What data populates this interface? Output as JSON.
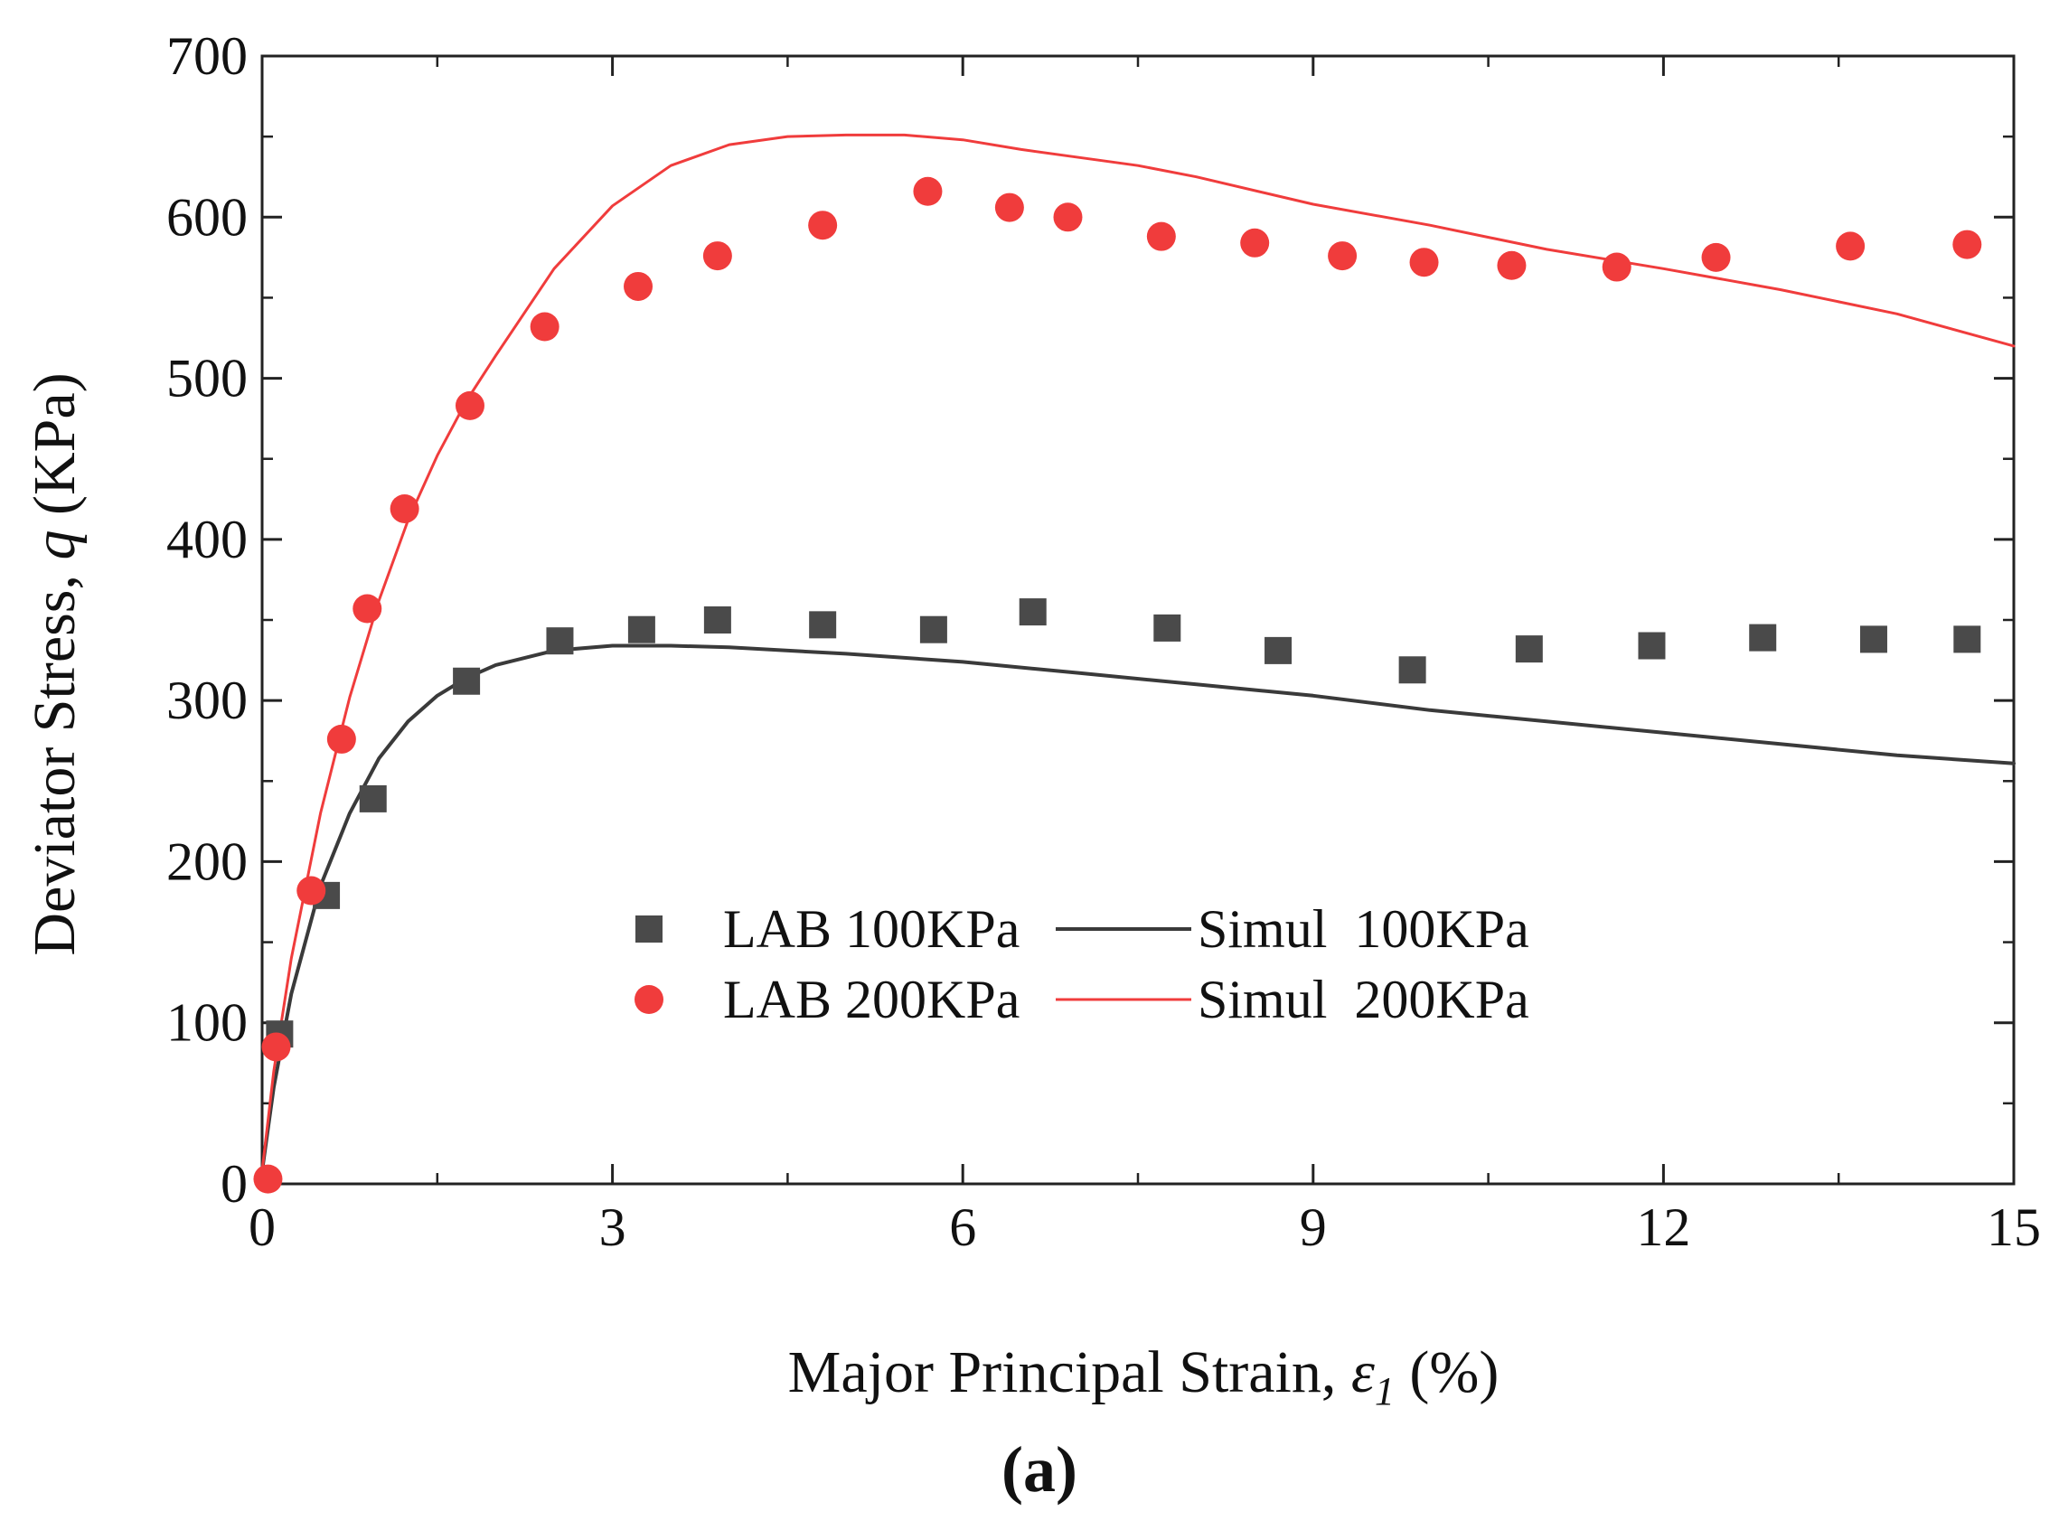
{
  "chart_data": {
    "type": "line",
    "title": "",
    "xlabel": "Major Principal Strain, ",
    "xlabel_symbol": "ε",
    "xlabel_subscript": "1",
    "xlabel_unit": " (%)",
    "ylabel": "Deviator Stress, ",
    "ylabel_symbol": "q",
    "ylabel_unit": " (KPa)",
    "xlim": [
      0,
      15
    ],
    "ylim": [
      0,
      700
    ],
    "x_ticks": [
      "0",
      "3",
      "6",
      "9",
      "12",
      "15"
    ],
    "y_ticks": [
      "0",
      "100",
      "200",
      "300",
      "400",
      "500",
      "600",
      "700"
    ],
    "grid": false,
    "legend_position": "center-left",
    "panel_label": "(a)",
    "series": [
      {
        "name": "LAB 100KPa",
        "kind": "scatter",
        "marker": "square",
        "color": "#4a4a4a",
        "x": [
          0.15,
          0.55,
          0.95,
          1.75,
          2.55,
          3.25,
          3.9,
          4.8,
          5.75,
          6.6,
          7.75,
          8.7,
          9.85,
          10.85,
          11.9,
          12.85,
          13.8,
          14.6
        ],
        "y": [
          93,
          179,
          239,
          312,
          337,
          344,
          350,
          347,
          344,
          355,
          345,
          331,
          319,
          332,
          334,
          339,
          338,
          338
        ]
      },
      {
        "name": "LAB 200KPa",
        "kind": "scatter",
        "marker": "circle",
        "color": "#f03c3c",
        "x": [
          0.05,
          0.12,
          0.42,
          0.68,
          0.9,
          1.22,
          1.78,
          2.42,
          3.22,
          3.9,
          4.8,
          5.7,
          6.4,
          6.9,
          7.7,
          8.5,
          9.25,
          9.95,
          10.7,
          11.6,
          12.45,
          13.6,
          14.6
        ],
        "y": [
          3,
          85,
          182,
          276,
          357,
          419,
          483,
          532,
          557,
          576,
          595,
          616,
          606,
          600,
          588,
          584,
          576,
          572,
          570,
          569,
          575,
          582,
          583
        ]
      },
      {
        "name": "Simul  100KPa",
        "kind": "line",
        "color": "#3a3a3a",
        "x": [
          0,
          0.1,
          0.25,
          0.5,
          0.75,
          1,
          1.25,
          1.5,
          1.75,
          2,
          2.5,
          3,
          3.5,
          4,
          5,
          6,
          7,
          8,
          9,
          10,
          11,
          12,
          13,
          14,
          15
        ],
        "y": [
          8,
          60,
          118,
          185,
          230,
          264,
          287,
          303,
          314,
          322,
          331,
          334,
          334,
          333,
          329,
          324,
          317,
          310,
          303,
          294,
          287,
          280,
          273,
          266,
          261
        ]
      },
      {
        "name": "Simul  200KPa",
        "kind": "line",
        "color": "#f03c3c",
        "x": [
          0,
          0.1,
          0.25,
          0.5,
          0.75,
          1,
          1.25,
          1.5,
          1.75,
          2,
          2.5,
          3,
          3.5,
          4,
          4.5,
          5,
          5.5,
          6,
          6.5,
          7,
          7.5,
          8,
          9,
          10,
          11,
          12,
          13,
          14,
          15
        ],
        "y": [
          8,
          70,
          140,
          230,
          302,
          362,
          412,
          452,
          486,
          514,
          568,
          607,
          632,
          645,
          650,
          651,
          651,
          648,
          642,
          637,
          632,
          625,
          608,
          595,
          580,
          568,
          555,
          540,
          520
        ]
      }
    ],
    "colors": {
      "axis": "#222222",
      "lab_100": "#4a4a4a",
      "lab_200": "#f03c3c",
      "simul_100": "#3a3a3a",
      "simul_200": "#f03c3c"
    }
  }
}
